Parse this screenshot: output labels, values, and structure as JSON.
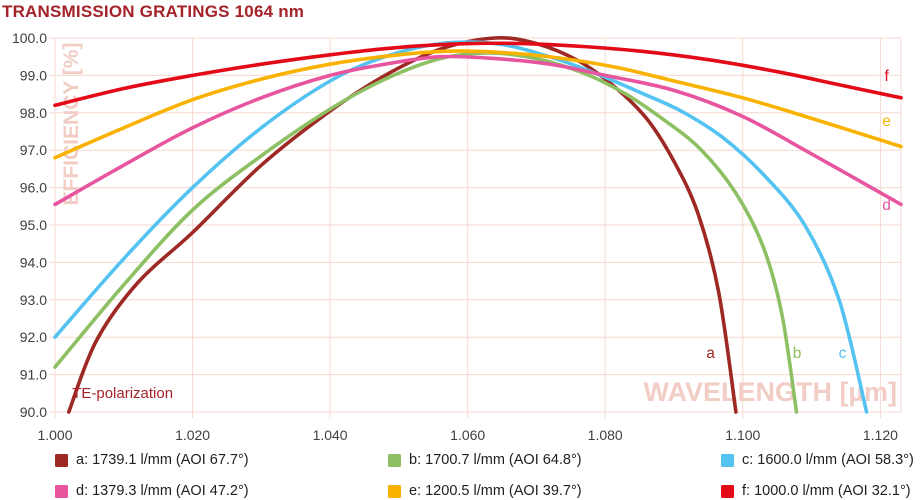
{
  "title": "TRANSMISSION GRATINGS 1064 nm",
  "colors": {
    "title": "#a4232a",
    "grid": "#f5d8d1",
    "tick_text": "#3f3f3f",
    "legend_text": "#21201e",
    "watermark": "#f1cdc5",
    "annotation": "#a4232a"
  },
  "chart_data": {
    "type": "line",
    "title": "TRANSMISSION GRATINGS 1064 nm",
    "xlabel": "WAVELENGTH [µm]",
    "ylabel": "EFFICIENCY [%]",
    "xlim": [
      1.0,
      1.123
    ],
    "ylim": [
      90.0,
      100.0
    ],
    "grid": true,
    "x_ticks": [
      "1.000",
      "1.020",
      "1.040",
      "1.060",
      "1.080",
      "1.100",
      "1.120"
    ],
    "y_ticks": [
      "90.0",
      "91.0",
      "92.0",
      "93.0",
      "94.0",
      "95.0",
      "96.0",
      "97.0",
      "98.0",
      "99.0",
      "100.0"
    ],
    "annotation": {
      "text": "TE-polarization",
      "pos": [
        1.0025,
        90.38
      ]
    },
    "legend_position": "bottom",
    "series": [
      {
        "letter": "a",
        "label": "a: 1739.1 l/mm (AOI 67.7°)",
        "color": "#9e2823",
        "letter_pos": [
          1.0953,
          91.45
        ],
        "points": [
          [
            1.002,
            90.0
          ],
          [
            1.006,
            91.9
          ],
          [
            1.012,
            93.45
          ],
          [
            1.02,
            94.8
          ],
          [
            1.03,
            96.6
          ],
          [
            1.04,
            98.05
          ],
          [
            1.048,
            99.0
          ],
          [
            1.056,
            99.7
          ],
          [
            1.064,
            100.0
          ],
          [
            1.07,
            99.85
          ],
          [
            1.076,
            99.4
          ],
          [
            1.081,
            98.75
          ],
          [
            1.086,
            97.85
          ],
          [
            1.09,
            96.7
          ],
          [
            1.0935,
            95.3
          ],
          [
            1.0965,
            93.2
          ],
          [
            1.099,
            90.0
          ]
        ]
      },
      {
        "letter": "b",
        "label": "b: 1700.7 l/mm (AOI 64.8°)",
        "color": "#8dc063",
        "letter_pos": [
          1.1079,
          91.45
        ],
        "points": [
          [
            1.0,
            91.2
          ],
          [
            1.01,
            93.4
          ],
          [
            1.02,
            95.4
          ],
          [
            1.03,
            96.85
          ],
          [
            1.04,
            98.1
          ],
          [
            1.048,
            98.9
          ],
          [
            1.056,
            99.45
          ],
          [
            1.063,
            99.6
          ],
          [
            1.07,
            99.45
          ],
          [
            1.077,
            99.05
          ],
          [
            1.083,
            98.5
          ],
          [
            1.089,
            97.75
          ],
          [
            1.094,
            97.0
          ],
          [
            1.099,
            95.85
          ],
          [
            1.103,
            94.4
          ],
          [
            1.1057,
            92.6
          ],
          [
            1.1078,
            90.0
          ]
        ]
      },
      {
        "letter": "c",
        "label": "c: 1600.0 l/mm (AOI 58.3°)",
        "color": "#54c3f1",
        "letter_pos": [
          1.1145,
          91.45
        ],
        "points": [
          [
            1.0,
            92.0
          ],
          [
            1.01,
            94.1
          ],
          [
            1.02,
            96.0
          ],
          [
            1.03,
            97.6
          ],
          [
            1.04,
            98.85
          ],
          [
            1.048,
            99.5
          ],
          [
            1.056,
            99.85
          ],
          [
            1.064,
            99.85
          ],
          [
            1.071,
            99.55
          ],
          [
            1.078,
            99.1
          ],
          [
            1.085,
            98.55
          ],
          [
            1.091,
            98.05
          ],
          [
            1.097,
            97.35
          ],
          [
            1.103,
            96.35
          ],
          [
            1.109,
            95.0
          ],
          [
            1.114,
            93.0
          ],
          [
            1.118,
            90.0
          ]
        ]
      },
      {
        "letter": "d",
        "label": "d: 1379.3 l/mm (AOI 47.2°)",
        "color": "#e7559f",
        "letter_pos": [
          1.1209,
          95.4
        ],
        "points": [
          [
            1.0,
            95.55
          ],
          [
            1.01,
            96.6
          ],
          [
            1.02,
            97.6
          ],
          [
            1.03,
            98.4
          ],
          [
            1.04,
            99.0
          ],
          [
            1.048,
            99.3
          ],
          [
            1.056,
            99.5
          ],
          [
            1.064,
            99.45
          ],
          [
            1.072,
            99.3
          ],
          [
            1.08,
            99.0
          ],
          [
            1.09,
            98.6
          ],
          [
            1.1,
            97.9
          ],
          [
            1.11,
            96.9
          ],
          [
            1.123,
            95.55
          ]
        ]
      },
      {
        "letter": "e",
        "label": "e: 1200.5 l/mm (AOI 39.7°)",
        "color": "#f9b200",
        "letter_pos": [
          1.1209,
          97.65
        ],
        "points": [
          [
            1.0,
            96.8
          ],
          [
            1.01,
            97.6
          ],
          [
            1.02,
            98.35
          ],
          [
            1.03,
            98.9
          ],
          [
            1.04,
            99.3
          ],
          [
            1.05,
            99.55
          ],
          [
            1.058,
            99.65
          ],
          [
            1.066,
            99.6
          ],
          [
            1.074,
            99.45
          ],
          [
            1.082,
            99.2
          ],
          [
            1.09,
            98.85
          ],
          [
            1.1,
            98.4
          ],
          [
            1.11,
            97.85
          ],
          [
            1.123,
            97.1
          ]
        ]
      },
      {
        "letter": "f",
        "label": "f: 1000.0 l/mm (AOI 32.1°)",
        "color": "#e30b17",
        "letter_pos": [
          1.1209,
          98.85
        ],
        "points": [
          [
            1.0,
            98.2
          ],
          [
            1.01,
            98.65
          ],
          [
            1.02,
            99.0
          ],
          [
            1.03,
            99.3
          ],
          [
            1.04,
            99.55
          ],
          [
            1.05,
            99.75
          ],
          [
            1.06,
            99.85
          ],
          [
            1.068,
            99.85
          ],
          [
            1.076,
            99.78
          ],
          [
            1.085,
            99.65
          ],
          [
            1.095,
            99.42
          ],
          [
            1.105,
            99.1
          ],
          [
            1.114,
            98.75
          ],
          [
            1.123,
            98.4
          ]
        ]
      }
    ]
  }
}
